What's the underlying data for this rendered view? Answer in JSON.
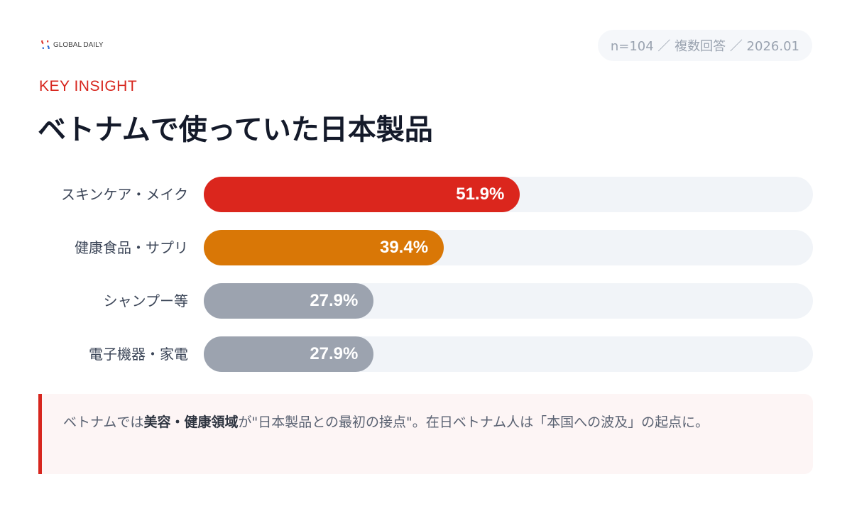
{
  "brand": "GLOBAL DAILY",
  "meta": "n=104 ／ 複数回答 ／ 2026.01",
  "kicker": "KEY INSIGHT",
  "title": "ベトナムで使っていた日本製品",
  "chart_data": {
    "type": "bar",
    "orientation": "horizontal",
    "title": "ベトナムで使っていた日本製品",
    "categories": [
      "スキンケア・メイク",
      "健康食品・サプリ",
      "シャンプー等",
      "電子機器・家電"
    ],
    "values": [
      51.9,
      39.4,
      27.9,
      27.9
    ],
    "labels": [
      "51.9%",
      "39.4%",
      "27.9%",
      "27.9%"
    ],
    "colors": [
      "#db261d",
      "#d97706",
      "#9ca3af",
      "#9ca3af"
    ],
    "xlim": [
      0,
      100
    ]
  },
  "note": {
    "pre": "ベトナムでは",
    "bold": "美容・健康領域",
    "post": "が\"日本製品との最初の接点\"。在日ベトナム人は「本国への波及」の起点に。"
  }
}
